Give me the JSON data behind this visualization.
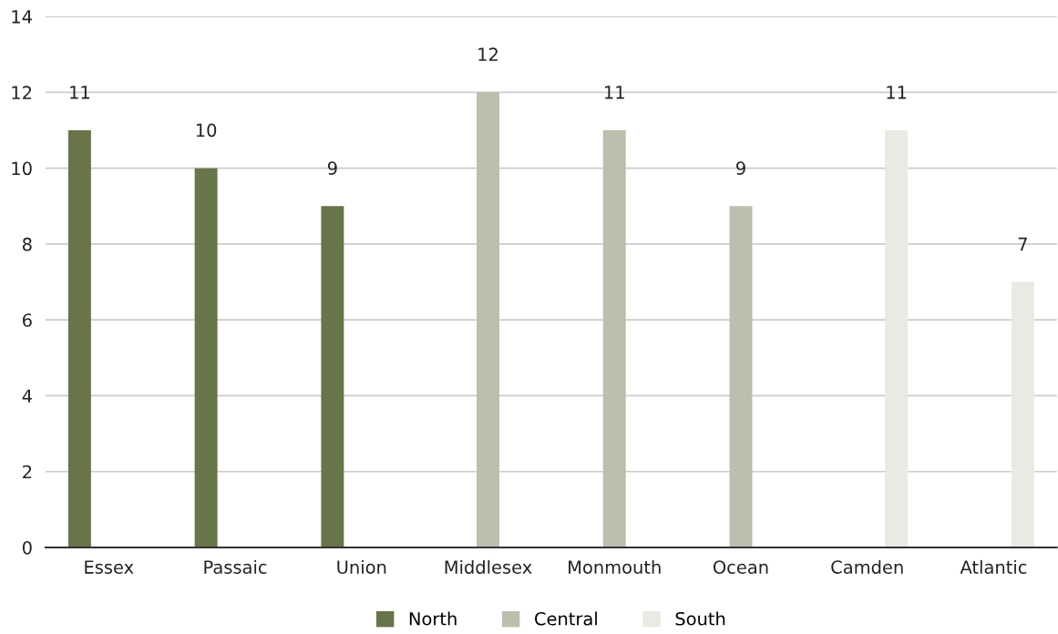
{
  "chart_data": {
    "type": "bar",
    "categories": [
      "Essex",
      "Passaic",
      "Union",
      "Middlesex",
      "Monmouth",
      "Ocean",
      "Camden",
      "Atlantic"
    ],
    "series": [
      {
        "name": "North",
        "color": "#68744a",
        "values": [
          11,
          10,
          9,
          null,
          null,
          null,
          null,
          null
        ]
      },
      {
        "name": "Central",
        "color": "#bcbfae",
        "values": [
          null,
          null,
          null,
          12,
          11,
          9,
          null,
          null
        ]
      },
      {
        "name": "South",
        "color": "#e9eae3",
        "values": [
          null,
          null,
          null,
          null,
          null,
          null,
          11,
          7
        ]
      }
    ],
    "ylim": [
      0,
      14
    ],
    "yticks": [
      0,
      2,
      4,
      6,
      8,
      10,
      12,
      14
    ],
    "grid": "y",
    "legend": "bottom",
    "data_labels": true
  }
}
